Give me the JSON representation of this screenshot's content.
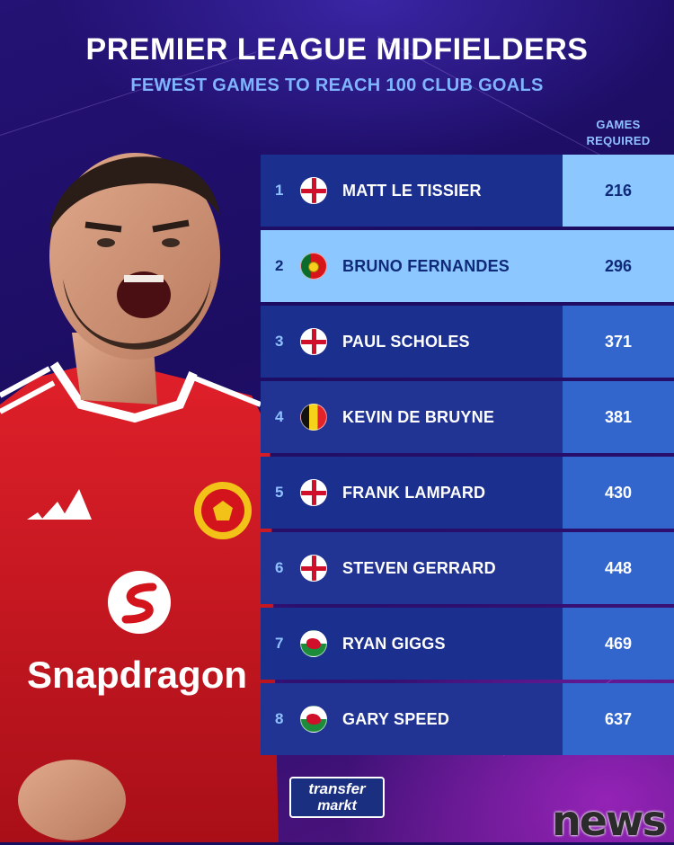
{
  "header": {
    "title": "PREMIER LEAGUE MIDFIELDERS",
    "subtitle": "FEWEST GAMES TO REACH 100 CLUB GOALS",
    "column_header_line1": "GAMES",
    "column_header_line2": "REQUIRED"
  },
  "player_shirt": {
    "sponsor": "Snapdragon",
    "crest": "manchester-united-crest-icon",
    "brand": "adidas-logo-icon",
    "shirt_color": "#d3141c"
  },
  "rows": [
    {
      "rank": "1",
      "flag": "england-flag-icon",
      "name": "MATT LE TISSIER",
      "games": "216"
    },
    {
      "rank": "2",
      "flag": "portugal-flag-icon",
      "name": "BRUNO FERNANDES",
      "games": "296"
    },
    {
      "rank": "3",
      "flag": "england-flag-icon",
      "name": "PAUL SCHOLES",
      "games": "371"
    },
    {
      "rank": "4",
      "flag": "belgium-flag-icon",
      "name": "KEVIN DE BRUYNE",
      "games": "381"
    },
    {
      "rank": "5",
      "flag": "england-flag-icon",
      "name": "FRANK LAMPARD",
      "games": "430"
    },
    {
      "rank": "6",
      "flag": "england-flag-icon",
      "name": "STEVEN GERRARD",
      "games": "448"
    },
    {
      "rank": "7",
      "flag": "wales-flag-icon",
      "name": "RYAN GIGGS",
      "games": "469"
    },
    {
      "rank": "8",
      "flag": "wales-flag-icon",
      "name": "GARY SPEED",
      "games": "637"
    }
  ],
  "branding": {
    "logo_line1": "transfer",
    "logo_line2": "markt",
    "watermark": "news"
  },
  "colors": {
    "accent_light_blue": "#8cc7ff",
    "row_blue": "#1b2f8f",
    "games_cell_blue": "#3366cc",
    "subtitle_blue": "#7fb4ff"
  }
}
